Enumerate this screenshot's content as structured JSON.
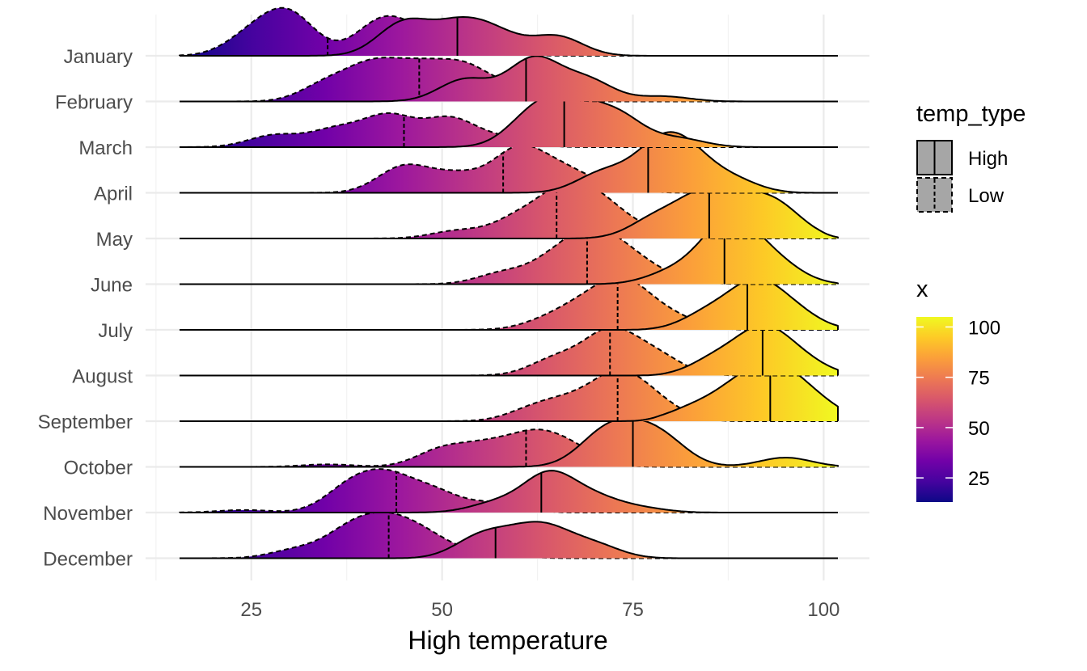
{
  "chart_data": {
    "type": "ridgeline",
    "xlabel": "High temperature",
    "ylabel": "",
    "xlim": [
      14,
      106
    ],
    "x_ticks": [
      25,
      50,
      75,
      100
    ],
    "y_categories": [
      "January",
      "February",
      "March",
      "April",
      "May",
      "June",
      "July",
      "August",
      "September",
      "October",
      "November",
      "December"
    ],
    "grid": true,
    "fill_colormap": "plasma",
    "legend_temp_type": {
      "title": "temp_type",
      "entries": [
        {
          "name": "High",
          "line": "solid"
        },
        {
          "name": "Low",
          "line": "dashed"
        }
      ]
    },
    "legend_x": {
      "title": "x",
      "range": [
        13,
        105
      ],
      "ticks": [
        25,
        50,
        75,
        100
      ]
    },
    "series": [
      {
        "month": "January",
        "type": "High",
        "median": 52,
        "peaks": [
          [
            45,
            0.78
          ],
          [
            52,
            0.66
          ],
          [
            57,
            0.48
          ],
          [
            65,
            0.46
          ]
        ],
        "range": [
          20,
          75
        ]
      },
      {
        "month": "January",
        "type": "Low",
        "median": 35,
        "peaks": [
          [
            25,
            0.46
          ],
          [
            30,
            0.95
          ],
          [
            42,
            0.78
          ],
          [
            47,
            0.4
          ],
          [
            55,
            0.2
          ]
        ],
        "range": [
          15,
          70
        ]
      },
      {
        "month": "February",
        "type": "High",
        "median": 61,
        "peaks": [
          [
            53,
            0.52
          ],
          [
            62,
            1.0
          ],
          [
            69,
            0.5
          ],
          [
            79,
            0.12
          ]
        ],
        "range": [
          34,
          88
        ]
      },
      {
        "month": "February",
        "type": "Low",
        "median": 47,
        "peaks": [
          [
            35,
            0.42
          ],
          [
            41,
            0.78
          ],
          [
            47,
            0.7
          ],
          [
            53,
            0.76
          ],
          [
            60,
            0.3
          ]
        ],
        "range": [
          20,
          72
        ]
      },
      {
        "month": "March",
        "type": "High",
        "median": 66,
        "peaks": [
          [
            62,
            0.75
          ],
          [
            67,
            0.86
          ],
          [
            73,
            0.72
          ],
          [
            81,
            0.2
          ]
        ],
        "range": [
          40,
          90
        ]
      },
      {
        "month": "March",
        "type": "Low",
        "median": 45,
        "peaks": [
          [
            28,
            0.28
          ],
          [
            36,
            0.4
          ],
          [
            43,
            0.72
          ],
          [
            51,
            0.66
          ],
          [
            58,
            0.2
          ]
        ],
        "range": [
          16,
          78
        ]
      },
      {
        "month": "April",
        "type": "High",
        "median": 77,
        "peaks": [
          [
            71,
            0.46
          ],
          [
            78,
            0.86
          ],
          [
            82,
            0.82
          ],
          [
            88,
            0.3
          ]
        ],
        "range": [
          60,
          95
        ]
      },
      {
        "month": "April",
        "type": "Low",
        "median": 58,
        "peaks": [
          [
            45,
            0.62
          ],
          [
            52,
            0.4
          ],
          [
            60,
            1.0
          ],
          [
            66,
            0.48
          ],
          [
            72,
            0.12
          ]
        ],
        "range": [
          28,
          82
        ]
      },
      {
        "month": "May",
        "type": "High",
        "median": 85,
        "peaks": [
          [
            78,
            0.46
          ],
          [
            84,
            0.86
          ],
          [
            89,
            0.66
          ],
          [
            94,
            0.7
          ]
        ],
        "range": [
          70,
          99
        ]
      },
      {
        "month": "May",
        "type": "Low",
        "median": 65,
        "peaks": [
          [
            52,
            0.18
          ],
          [
            60,
            0.46
          ],
          [
            66,
            1.0
          ],
          [
            71,
            0.7
          ],
          [
            77,
            0.16
          ]
        ],
        "range": [
          40,
          88
        ]
      },
      {
        "month": "June",
        "type": "High",
        "median": 87,
        "peaks": [
          [
            80,
            0.26
          ],
          [
            86,
            0.74
          ],
          [
            89,
            0.92
          ],
          [
            94,
            0.42
          ]
        ],
        "range": [
          70,
          100
        ]
      },
      {
        "month": "June",
        "type": "Low",
        "median": 69,
        "peaks": [
          [
            58,
            0.26
          ],
          [
            65,
            0.56
          ],
          [
            70,
            1.0
          ],
          [
            75,
            0.48
          ],
          [
            80,
            0.1
          ]
        ],
        "range": [
          45,
          88
        ]
      },
      {
        "month": "July",
        "type": "High",
        "median": 90,
        "peaks": [
          [
            85,
            0.4
          ],
          [
            91,
            1.0
          ],
          [
            96,
            0.4
          ]
        ],
        "range": [
          78,
          103
        ]
      },
      {
        "month": "July",
        "type": "Low",
        "median": 73,
        "peaks": [
          [
            64,
            0.22
          ],
          [
            69,
            0.52
          ],
          [
            74,
            1.0
          ],
          [
            80,
            0.3
          ]
        ],
        "range": [
          55,
          90
        ]
      },
      {
        "month": "August",
        "type": "High",
        "median": 92,
        "peaks": [
          [
            86,
            0.4
          ],
          [
            92,
            1.0
          ],
          [
            97,
            0.34
          ]
        ],
        "range": [
          80,
          104
        ]
      },
      {
        "month": "August",
        "type": "Low",
        "median": 72,
        "peaks": [
          [
            65,
            0.4
          ],
          [
            72,
            1.0
          ],
          [
            78,
            0.46
          ]
        ],
        "range": [
          56,
          90
        ]
      },
      {
        "month": "September",
        "type": "High",
        "median": 93,
        "peaks": [
          [
            83,
            0.3
          ],
          [
            89,
            0.72
          ],
          [
            94,
            1.0
          ],
          [
            99,
            0.4
          ]
        ],
        "range": [
          79,
          105
        ]
      },
      {
        "month": "September",
        "type": "Low",
        "median": 73,
        "peaks": [
          [
            62,
            0.28
          ],
          [
            67,
            0.4
          ],
          [
            73,
            1.0
          ],
          [
            78,
            0.4
          ]
        ],
        "range": [
          48,
          90
        ]
      },
      {
        "month": "October",
        "type": "High",
        "median": 75,
        "peaks": [
          [
            71,
            0.66
          ],
          [
            75,
            0.54
          ],
          [
            79,
            0.56
          ],
          [
            95,
            0.22
          ]
        ],
        "range": [
          62,
          105
        ]
      },
      {
        "month": "October",
        "type": "Low",
        "median": 61,
        "peaks": [
          [
            35,
            0.06
          ],
          [
            50,
            0.4
          ],
          [
            56,
            0.44
          ],
          [
            62,
            0.66
          ],
          [
            67,
            0.4
          ]
        ],
        "range": [
          28,
          80
        ]
      },
      {
        "month": "November",
        "type": "High",
        "median": 63,
        "peaks": [
          [
            57,
            0.22
          ],
          [
            64,
            0.9
          ],
          [
            70,
            0.32
          ],
          [
            76,
            0.1
          ]
        ],
        "range": [
          48,
          85
        ]
      },
      {
        "month": "November",
        "type": "Low",
        "median": 44,
        "peaks": [
          [
            24,
            0.06
          ],
          [
            38,
            0.58
          ],
          [
            43,
            0.72
          ],
          [
            49,
            0.46
          ],
          [
            57,
            0.22
          ]
        ],
        "range": [
          15,
          70
        ]
      },
      {
        "month": "December",
        "type": "High",
        "median": 57,
        "peaks": [
          [
            55,
            0.48
          ],
          [
            60,
            0.38
          ],
          [
            64,
            0.56
          ],
          [
            70,
            0.3
          ]
        ],
        "range": [
          48,
          78
        ]
      },
      {
        "month": "December",
        "type": "Low",
        "median": 43,
        "peaks": [
          [
            31,
            0.2
          ],
          [
            38,
            0.62
          ],
          [
            43,
            0.72
          ],
          [
            48,
            0.46
          ],
          [
            56,
            0.14
          ]
        ],
        "range": [
          18,
          75
        ]
      }
    ]
  }
}
